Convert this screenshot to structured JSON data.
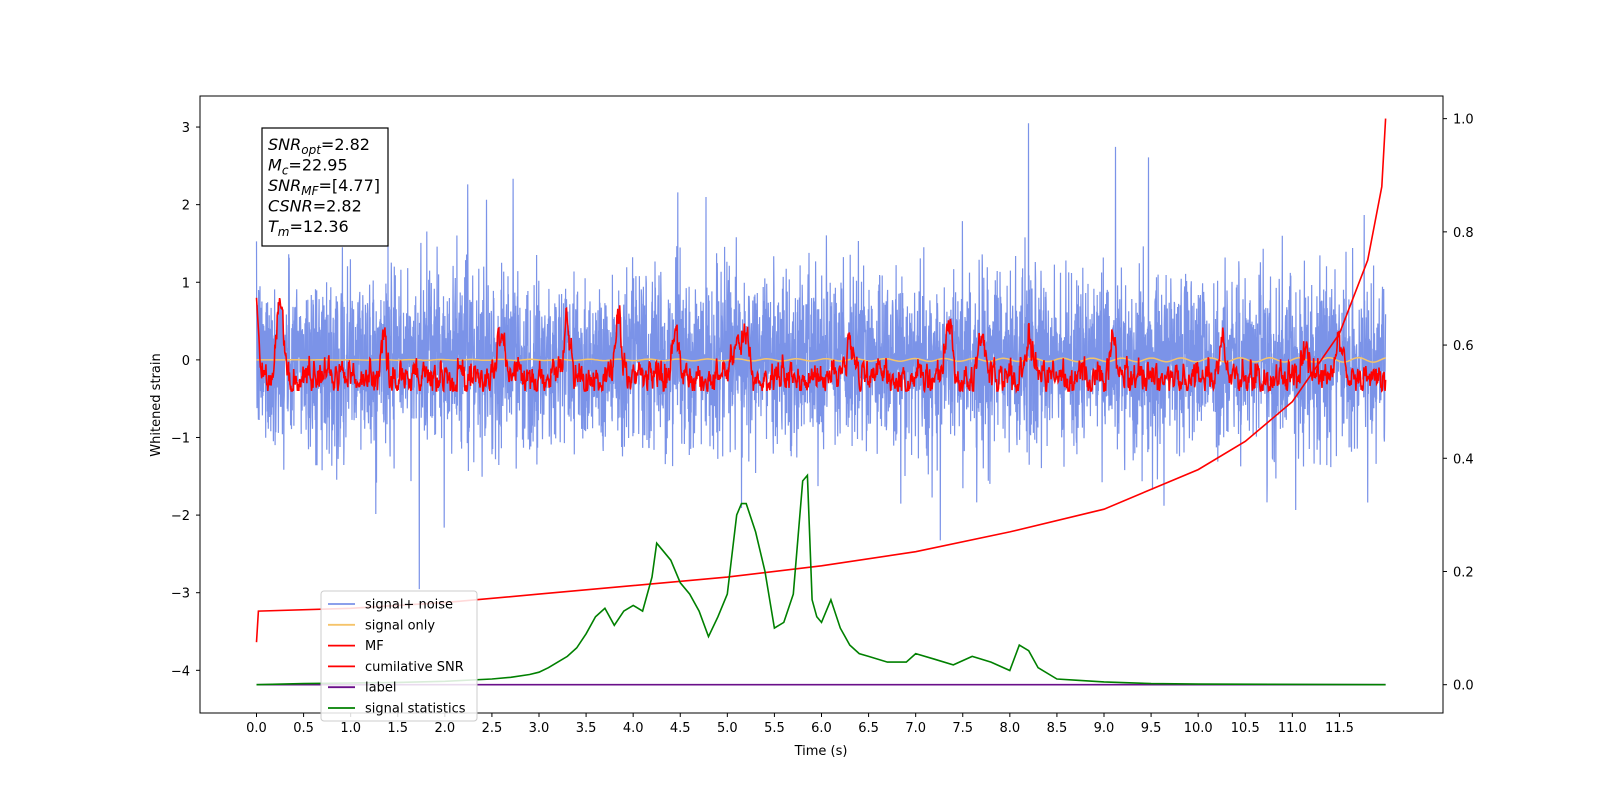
{
  "chart_data": {
    "type": "line",
    "xlabel": "Time (s)",
    "ylabel": "Whitened strain",
    "xlim": [
      -0.6,
      12.6
    ],
    "ylim": [
      -4.55,
      3.4
    ],
    "y2lim": [
      -0.05,
      1.04
    ],
    "grid": false,
    "x_ticks": [
      "0.0",
      "0.5",
      "1.0",
      "1.5",
      "2.0",
      "2.5",
      "3.0",
      "3.5",
      "4.0",
      "4.5",
      "5.0",
      "5.5",
      "6.0",
      "6.5",
      "7.0",
      "7.5",
      "8.0",
      "8.5",
      "9.0",
      "9.5",
      "10.0",
      "10.5",
      "11.0",
      "11.5"
    ],
    "y_ticks": [
      "3",
      "2",
      "1",
      "0",
      "−1",
      "−2",
      "−3",
      "−4"
    ],
    "y2_ticks": [
      "1.0",
      "0.8",
      "0.6",
      "0.4",
      "0.2",
      "0.0"
    ],
    "legend_location": "lower-left",
    "annotation": {
      "lines": [
        {
          "main": "SNR",
          "sub": "opt",
          "value": "=2.82"
        },
        {
          "main": "M",
          "sub": "c",
          "value": "=22.95"
        },
        {
          "main": "SNR",
          "sub": "MF",
          "value": "=[4.77]"
        },
        {
          "main": "CSNR",
          "sub": "",
          "value": "=2.82"
        },
        {
          "main": "T",
          "sub": "m",
          "value": "=12.36"
        }
      ]
    },
    "series": [
      {
        "name": "signal+ noise",
        "color": "#7b93e8",
        "axis": "left",
        "kind": "noise",
        "t_range": [
          0,
          11.99
        ],
        "amplitude_sd": 0.55
      },
      {
        "name": "signal only",
        "color": "#f5c46a",
        "axis": "left",
        "kind": "near-zero",
        "t_range": [
          0,
          11.99
        ]
      },
      {
        "name": "MF",
        "color": "#ff0000",
        "axis": "left",
        "kind": "matched-filter",
        "t_range": [
          0,
          11.99
        ],
        "peaks": [
          [
            0.25,
            0.95
          ],
          [
            1.35,
            0.5
          ],
          [
            2.6,
            0.55
          ],
          [
            3.3,
            0.75
          ],
          [
            3.85,
            0.7
          ],
          [
            4.45,
            0.6
          ],
          [
            5.1,
            0.6
          ],
          [
            5.2,
            0.55
          ],
          [
            6.3,
            0.5
          ],
          [
            7.35,
            0.65
          ],
          [
            7.7,
            0.6
          ],
          [
            8.2,
            0.55
          ],
          [
            9.1,
            0.5
          ],
          [
            10.25,
            0.45
          ],
          [
            11.15,
            0.45
          ],
          [
            11.5,
            0.45
          ]
        ]
      },
      {
        "name": "cumilative SNR",
        "color": "#ff0000",
        "axis": "right",
        "x": [
          0.0,
          0.02,
          1.0,
          2.0,
          3.0,
          4.0,
          5.0,
          6.0,
          7.0,
          8.0,
          9.0,
          10.0,
          10.5,
          11.0,
          11.5,
          11.8,
          11.95,
          11.99
        ],
        "y": [
          0.075,
          0.13,
          0.135,
          0.145,
          0.16,
          0.175,
          0.19,
          0.21,
          0.235,
          0.27,
          0.31,
          0.38,
          0.43,
          0.5,
          0.62,
          0.75,
          0.88,
          1.0
        ]
      },
      {
        "name": "label",
        "color": "#6a0f8a",
        "axis": "right",
        "x": [
          0.0,
          11.99
        ],
        "y": [
          0.0,
          0.0
        ]
      },
      {
        "name": "signal statistics",
        "color": "#008000",
        "axis": "right",
        "x": [
          0.0,
          0.5,
          1.0,
          1.5,
          2.0,
          2.5,
          2.7,
          2.9,
          3.0,
          3.1,
          3.2,
          3.3,
          3.4,
          3.5,
          3.6,
          3.7,
          3.8,
          3.9,
          4.0,
          4.1,
          4.2,
          4.25,
          4.3,
          4.4,
          4.5,
          4.6,
          4.7,
          4.8,
          4.9,
          5.0,
          5.1,
          5.15,
          5.2,
          5.3,
          5.4,
          5.5,
          5.6,
          5.7,
          5.8,
          5.85,
          5.9,
          5.95,
          6.0,
          6.1,
          6.2,
          6.3,
          6.4,
          6.5,
          6.7,
          6.9,
          7.0,
          7.2,
          7.4,
          7.6,
          7.8,
          8.0,
          8.1,
          8.2,
          8.3,
          8.5,
          8.7,
          9.0,
          9.5,
          10.0,
          11.99
        ],
        "y": [
          0.0,
          0.002,
          0.003,
          0.004,
          0.006,
          0.01,
          0.013,
          0.018,
          0.022,
          0.03,
          0.04,
          0.05,
          0.065,
          0.09,
          0.12,
          0.135,
          0.105,
          0.13,
          0.14,
          0.13,
          0.19,
          0.25,
          0.24,
          0.22,
          0.18,
          0.16,
          0.13,
          0.085,
          0.12,
          0.16,
          0.3,
          0.32,
          0.32,
          0.27,
          0.2,
          0.1,
          0.11,
          0.16,
          0.36,
          0.37,
          0.15,
          0.12,
          0.11,
          0.15,
          0.1,
          0.07,
          0.055,
          0.05,
          0.04,
          0.04,
          0.055,
          0.045,
          0.035,
          0.05,
          0.04,
          0.025,
          0.07,
          0.06,
          0.03,
          0.01,
          0.008,
          0.005,
          0.002,
          0.001,
          0.0
        ]
      }
    ]
  }
}
